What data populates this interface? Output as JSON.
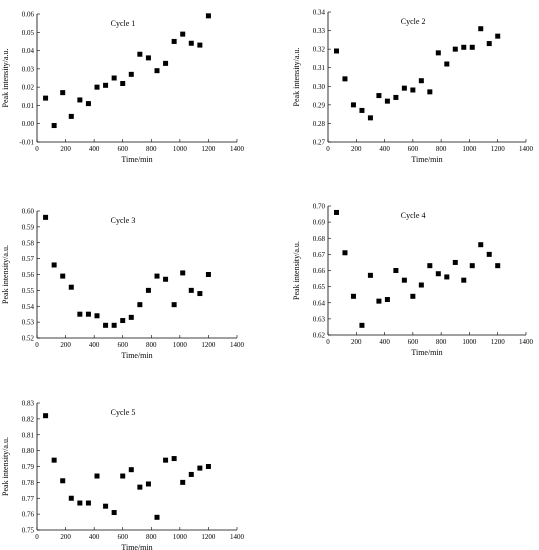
{
  "chart_data": [
    {
      "type": "scatter",
      "title": "Cycle 1",
      "xlabel": "Time/min",
      "ylabel": "Peak intensity/a.u.",
      "xlim": [
        0,
        1400
      ],
      "ylim": [
        -0.01,
        0.06
      ],
      "xticks": [
        0,
        200,
        400,
        600,
        800,
        1000,
        1200,
        1400
      ],
      "yticks": [
        "-0.01",
        "0.00",
        "0.01",
        "0.02",
        "0.03",
        "0.04",
        "0.05",
        "0.06"
      ],
      "x": [
        60,
        120,
        180,
        240,
        300,
        360,
        420,
        480,
        540,
        600,
        660,
        720,
        780,
        840,
        900,
        960,
        1020,
        1080,
        1140,
        1200
      ],
      "y": [
        0.014,
        -0.001,
        0.017,
        0.004,
        0.013,
        0.011,
        0.02,
        0.021,
        0.025,
        0.022,
        0.027,
        0.038,
        0.036,
        0.029,
        0.033,
        0.045,
        0.049,
        0.044,
        0.043,
        0.059
      ]
    },
    {
      "type": "scatter",
      "title": "Cycle 2",
      "xlabel": "Time/min",
      "ylabel": "Peak intensity/a.u.",
      "xlim": [
        0,
        1400
      ],
      "ylim": [
        0.27,
        0.34
      ],
      "xticks": [
        0,
        200,
        400,
        600,
        800,
        1000,
        1200,
        1400
      ],
      "yticks": [
        "0.27",
        "0.28",
        "0.29",
        "0.30",
        "0.31",
        "0.32",
        "0.33",
        "0.34"
      ],
      "x": [
        60,
        120,
        180,
        240,
        300,
        360,
        420,
        480,
        540,
        600,
        660,
        720,
        780,
        840,
        900,
        960,
        1020,
        1080,
        1140,
        1200
      ],
      "y": [
        0.319,
        0.304,
        0.29,
        0.287,
        0.283,
        0.295,
        0.292,
        0.294,
        0.299,
        0.298,
        0.303,
        0.297,
        0.318,
        0.312,
        0.32,
        0.321,
        0.321,
        0.331,
        0.323,
        0.327
      ]
    },
    {
      "type": "scatter",
      "title": "Cycle 3",
      "xlabel": "Time/min",
      "ylabel": "Peak intensity/a.u.",
      "xlim": [
        0,
        1400
      ],
      "ylim": [
        0.52,
        0.6
      ],
      "xticks": [
        0,
        200,
        400,
        600,
        800,
        1000,
        1200,
        1400
      ],
      "yticks": [
        "0.52",
        "0.53",
        "0.54",
        "0.55",
        "0.56",
        "0.57",
        "0.58",
        "0.59",
        "0.60"
      ],
      "x": [
        60,
        120,
        180,
        240,
        300,
        360,
        420,
        480,
        540,
        600,
        660,
        720,
        780,
        840,
        900,
        960,
        1020,
        1080,
        1140,
        1200
      ],
      "y": [
        0.596,
        0.566,
        0.559,
        0.552,
        0.535,
        0.535,
        0.534,
        0.528,
        0.528,
        0.531,
        0.533,
        0.541,
        0.55,
        0.559,
        0.557,
        0.541,
        0.561,
        0.55,
        0.548,
        0.56
      ]
    },
    {
      "type": "scatter",
      "title": "Cycle 4",
      "xlabel": "Time/min",
      "ylabel": "Peak intensity/a.u.",
      "xlim": [
        0,
        1400
      ],
      "ylim": [
        0.62,
        0.7
      ],
      "xticks": [
        0,
        200,
        400,
        600,
        800,
        1000,
        1200,
        1400
      ],
      "yticks": [
        "0.62",
        "0.63",
        "0.64",
        "0.65",
        "0.66",
        "0.67",
        "0.68",
        "0.69",
        "0.70"
      ],
      "x": [
        60,
        120,
        180,
        240,
        300,
        360,
        420,
        480,
        540,
        600,
        660,
        720,
        780,
        840,
        900,
        960,
        1020,
        1080,
        1140,
        1200
      ],
      "y": [
        0.696,
        0.671,
        0.644,
        0.626,
        0.657,
        0.641,
        0.642,
        0.66,
        0.654,
        0.644,
        0.651,
        0.663,
        0.658,
        0.656,
        0.665,
        0.654,
        0.663,
        0.676,
        0.67,
        0.663
      ]
    },
    {
      "type": "scatter",
      "title": "Cycle 5",
      "xlabel": "Time/min",
      "ylabel": "Peak intensity/a.u.",
      "xlim": [
        0,
        1400
      ],
      "ylim": [
        0.75,
        0.83
      ],
      "xticks": [
        0,
        200,
        400,
        600,
        800,
        1000,
        1200,
        1400
      ],
      "yticks": [
        "0.75",
        "0.76",
        "0.77",
        "0.78",
        "0.79",
        "0.80",
        "0.81",
        "0.82",
        "0.83"
      ],
      "x": [
        60,
        120,
        180,
        240,
        300,
        360,
        420,
        480,
        540,
        600,
        660,
        720,
        780,
        840,
        900,
        960,
        1020,
        1080,
        1140,
        1200
      ],
      "y": [
        0.822,
        0.794,
        0.781,
        0.77,
        0.767,
        0.767,
        0.784,
        0.765,
        0.761,
        0.784,
        0.788,
        0.777,
        0.779,
        0.758,
        0.794,
        0.795,
        0.78,
        0.785,
        0.789,
        0.79
      ]
    }
  ]
}
